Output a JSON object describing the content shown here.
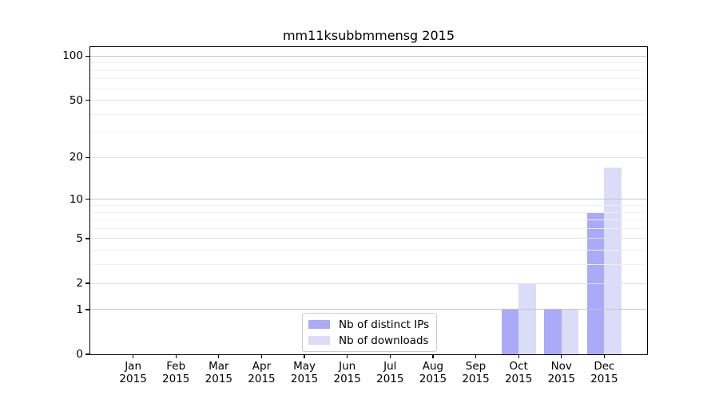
{
  "figure": {
    "background": "#ffffff",
    "axis_color": "#000000"
  },
  "chart_data": {
    "type": "bar",
    "title": "mm11ksubbmmensg 2015",
    "categories": [
      "Jan 2015",
      "Feb 2015",
      "Mar 2015",
      "Apr 2015",
      "May 2015",
      "Jun 2015",
      "Jul 2015",
      "Aug 2015",
      "Sep 2015",
      "Oct 2015",
      "Nov 2015",
      "Dec 2015"
    ],
    "series": [
      {
        "name": "Nb of distinct IPs",
        "color": "#aaaaf8",
        "values": [
          0,
          0,
          0,
          0,
          0,
          0,
          0,
          0,
          0,
          1,
          1,
          8
        ]
      },
      {
        "name": "Nb of downloads",
        "color": "#dadcf8",
        "values": [
          0,
          0,
          0,
          0,
          0,
          0,
          0,
          0,
          0,
          2,
          1,
          17
        ]
      }
    ],
    "xlabel": "",
    "ylabel": "",
    "yscale": "log1p",
    "ylim": [
      0,
      115
    ],
    "y_ticks": [
      0,
      1,
      2,
      5,
      10,
      20,
      50,
      100
    ],
    "y_minor_ticks": [
      3,
      4,
      6,
      7,
      8,
      9,
      30,
      40,
      60,
      70,
      80,
      90
    ],
    "grid": "horizontal, major and minor, drawn over bars",
    "grid_colors": {
      "pow10": "#c6c6c6",
      "mid": "#e2e2e2",
      "minor": "#f1f1f1"
    },
    "legend_position": "lower center, inside axes"
  }
}
